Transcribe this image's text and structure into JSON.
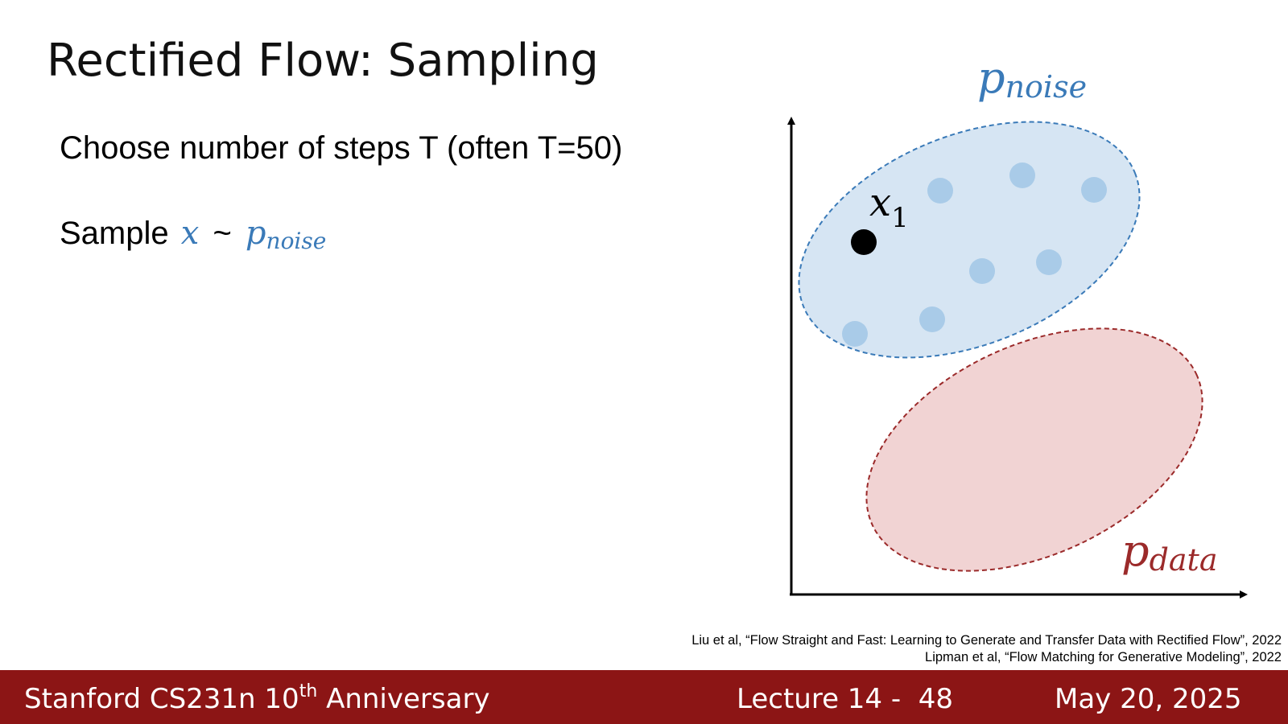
{
  "slide": {
    "title": "Rectified Flow: Sampling",
    "bullets": [
      {
        "text": "Choose number of steps T (often T=50)"
      },
      {
        "prefix": "Sample",
        "variable": "x",
        "relation": "~",
        "symbol": "p",
        "subscript": "noise"
      }
    ],
    "diagram": {
      "noise_label": {
        "symbol": "p",
        "subscript": "noise"
      },
      "point_label": {
        "symbol": "x",
        "subscript": "1"
      },
      "data_label": {
        "symbol": "p",
        "subscript": "data"
      }
    },
    "citations": [
      "Liu et al, “Flow Straight and Fast: Learning to Generate and Transfer Data with Rectified Flow”, 2022",
      "Lipman et al, “Flow Matching for Generative Modeling”, 2022"
    ],
    "footer": {
      "course": "Stanford CS231n 10",
      "course_sup": "th",
      "course_rest": " Anniversary",
      "lecture": "Lecture 14 -  48",
      "date": "May 20, 2025"
    }
  }
}
